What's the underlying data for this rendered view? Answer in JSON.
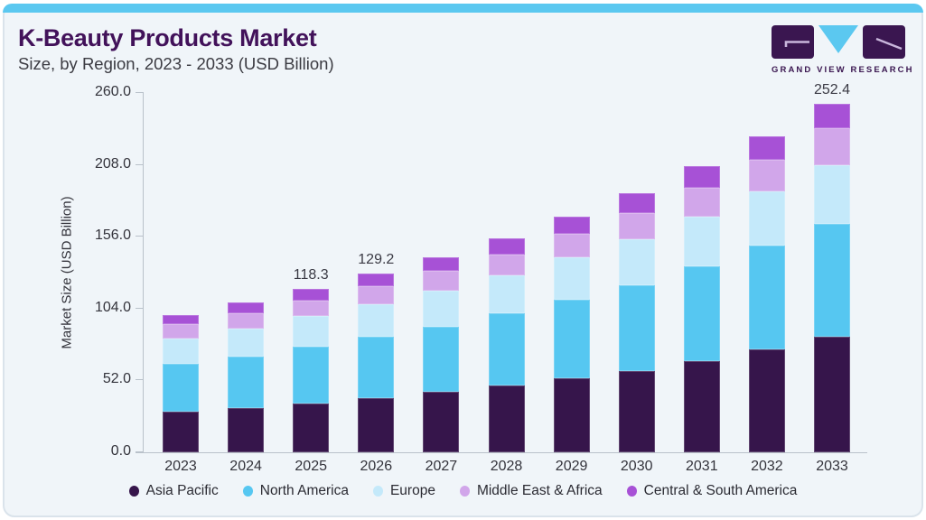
{
  "page": {
    "accent_strip_color": "#5BC8F0",
    "card_background": "#F0F5F9",
    "card_border_color": "#DAE3EB"
  },
  "header": {
    "title": "K-Beauty Products Market",
    "subtitle": "Size, by Region, 2023 - 2033 (USD Billion)",
    "title_color": "#42125A"
  },
  "logo": {
    "text": "GRAND VIEW RESEARCH",
    "tile_color": "#3A1650",
    "triangle_color": "#5BC8F0"
  },
  "chart_data": {
    "type": "bar",
    "stacked": true,
    "title": "K-Beauty Products Market Size, by Region, 2023 - 2033 (USD Billion)",
    "xlabel": "",
    "ylabel": "Market Size (USD Billion)",
    "ylim": [
      0,
      260
    ],
    "ytick_labels": [
      "0.0",
      "52.0",
      "104.0",
      "156.0",
      "208.0",
      "260.0"
    ],
    "grid": false,
    "legend_position": "bottom",
    "categories": [
      "2023",
      "2024",
      "2025",
      "2026",
      "2027",
      "2028",
      "2029",
      "2030",
      "2031",
      "2032",
      "2033"
    ],
    "series": [
      {
        "name": "Asia Pacific",
        "color": "#36154B",
        "values": [
          29.2,
          32.0,
          35.5,
          38.9,
          43.6,
          48.4,
          53.6,
          59.1,
          66.2,
          74.3,
          83.9
        ]
      },
      {
        "name": "North America",
        "color": "#56C7F1",
        "values": [
          34.7,
          37.5,
          40.9,
          44.6,
          47.3,
          52.0,
          57.1,
          62.1,
          68.5,
          75.2,
          81.4
        ]
      },
      {
        "name": "Europe",
        "color": "#C4E9FA",
        "values": [
          18.7,
          20.2,
          22.0,
          23.6,
          26.3,
          27.7,
          30.1,
          33.2,
          35.7,
          39.1,
          42.7
        ]
      },
      {
        "name": "Middle East & Africa",
        "color": "#D1A6EA",
        "values": [
          10.0,
          11.1,
          11.5,
          13.2,
          14.2,
          15.1,
          17.1,
          18.9,
          21.1,
          23.4,
          26.7
        ]
      },
      {
        "name": "Central & South America",
        "color": "#A751D6",
        "values": [
          6.6,
          7.5,
          8.4,
          8.9,
          9.8,
          11.8,
          12.9,
          14.1,
          15.3,
          16.6,
          17.7
        ]
      }
    ],
    "totals": [
      99.2,
      108.3,
      118.3,
      129.2,
      141.2,
      155.0,
      170.8,
      187.4,
      206.8,
      228.6,
      252.4
    ],
    "totals_labeled": {
      "2025": "118.3",
      "2026": "129.2",
      "2033": "252.4"
    }
  }
}
